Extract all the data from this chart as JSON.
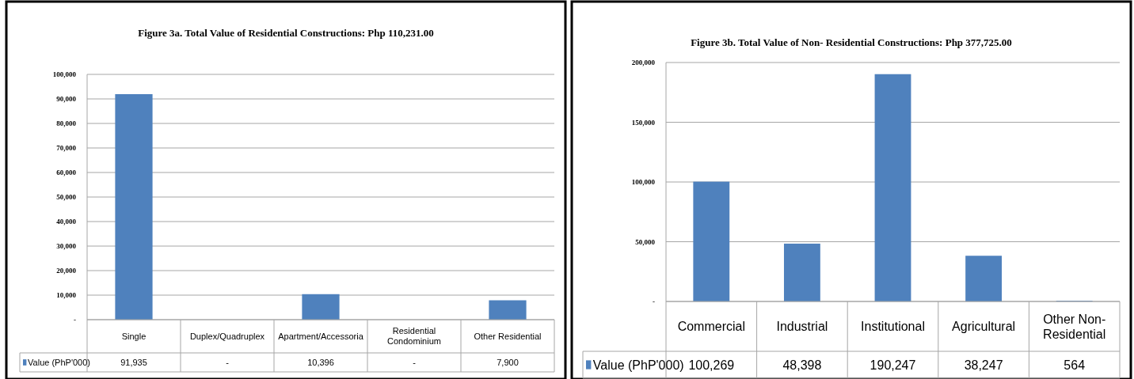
{
  "chart_data": [
    {
      "type": "bar",
      "title": "Figure 3a. Total Value of Residential Constructions: Php 110,231.00",
      "categories": [
        "Single",
        "Duplex/Quadruplex",
        "Apartment/Accessoria",
        "Residential Condominium",
        "Other Residential"
      ],
      "series": [
        {
          "name": "Value (PhP'000)",
          "color": "#4f81bd",
          "values": [
            91935,
            0,
            10396,
            0,
            7900
          ],
          "value_labels": [
            "91,935",
            "-",
            "10,396",
            "-",
            "7,900"
          ]
        }
      ],
      "ylim": [
        0,
        100000
      ],
      "yticks": [
        {
          "value": 0,
          "label": "-"
        },
        {
          "value": 10000,
          "label": "10,000"
        },
        {
          "value": 20000,
          "label": "20,000"
        },
        {
          "value": 30000,
          "label": "30,000"
        },
        {
          "value": 40000,
          "label": "40,000"
        },
        {
          "value": 50000,
          "label": "50,000"
        },
        {
          "value": 60000,
          "label": "60,000"
        },
        {
          "value": 70000,
          "label": "70,000"
        },
        {
          "value": 80000,
          "label": "80,000"
        },
        {
          "value": 90000,
          "label": "90,000"
        },
        {
          "value": 100000,
          "label": "100,000"
        }
      ],
      "grid": "y",
      "legend": "bottom"
    },
    {
      "type": "bar",
      "title": "Figure 3b. Total Value of Non- Residential Constructions: Php 377,725.00",
      "categories": [
        "Commercial",
        "Industrial",
        "Institutional",
        "Agricultural",
        "Other Non-Residential"
      ],
      "series": [
        {
          "name": "Value (PhP'000)",
          "color": "#4f81bd",
          "values": [
            100269,
            48398,
            190247,
            38247,
            564
          ],
          "value_labels": [
            "100,269",
            "48,398",
            "190,247",
            "38,247",
            "564"
          ]
        }
      ],
      "ylim": [
        0,
        200000
      ],
      "yticks": [
        {
          "value": 0,
          "label": "-"
        },
        {
          "value": 50000,
          "label": "50,000"
        },
        {
          "value": 100000,
          "label": "100,000"
        },
        {
          "value": 150000,
          "label": "150,000"
        },
        {
          "value": 200000,
          "label": "200,000"
        }
      ],
      "grid": "y",
      "legend": "bottom"
    }
  ]
}
